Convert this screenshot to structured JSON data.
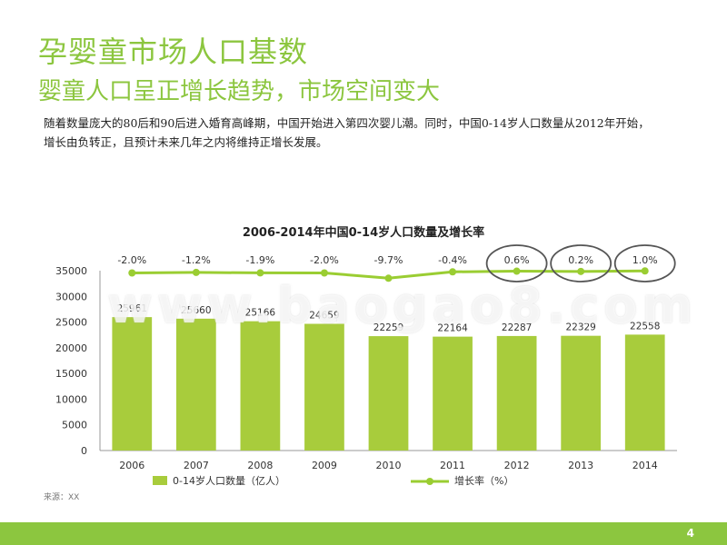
{
  "header": {
    "title": "孕婴童市场人口基数",
    "subtitle": "婴童人口呈正增长趋势，市场空间变大"
  },
  "description": {
    "line1": "随着数量庞大的80后和90后进入婚育高峰期，中国开始进入第四次婴儿潮。同时，中国0-14岁人口数量从2012年开始，",
    "line2": "增长由负转正，且预计未来几年之内将维持正增长发展。"
  },
  "chart_data": {
    "type": "bar",
    "title": "2006-2014年中国0-14岁人口数量及增长率",
    "categories": [
      "2006",
      "2007",
      "2008",
      "2009",
      "2010",
      "2011",
      "2012",
      "2013",
      "2014"
    ],
    "series": [
      {
        "name": "0-14岁人口数量（亿人）",
        "type": "bar",
        "color": "#a8cc3c",
        "values": [
          25961,
          25660,
          25166,
          24659,
          22259,
          22164,
          22287,
          22329,
          22558
        ]
      },
      {
        "name": "增长率（%）",
        "type": "line",
        "color": "#9acd32",
        "values": [
          -2.0,
          -1.2,
          -1.9,
          -2.0,
          -9.7,
          -0.4,
          0.6,
          0.2,
          1.0
        ],
        "labels": [
          "-2.0%",
          "-1.2%",
          "-1.9%",
          "-2.0%",
          "-9.7%",
          "-0.4%",
          "0.6%",
          "0.2%",
          "1.0%"
        ]
      }
    ],
    "yticks": [
      0,
      5000,
      10000,
      15000,
      20000,
      25000,
      30000,
      35000
    ],
    "ylim": [
      0,
      35000
    ],
    "highlighted_categories": [
      "2012",
      "2013",
      "2014"
    ],
    "legend_position": "bottom"
  },
  "source": "来源：XX",
  "watermark": "www.baogao8.com",
  "page_number": "4",
  "colors": {
    "accent": "#8cc63f",
    "bar": "#a8cc3c",
    "line": "#9acd32"
  }
}
